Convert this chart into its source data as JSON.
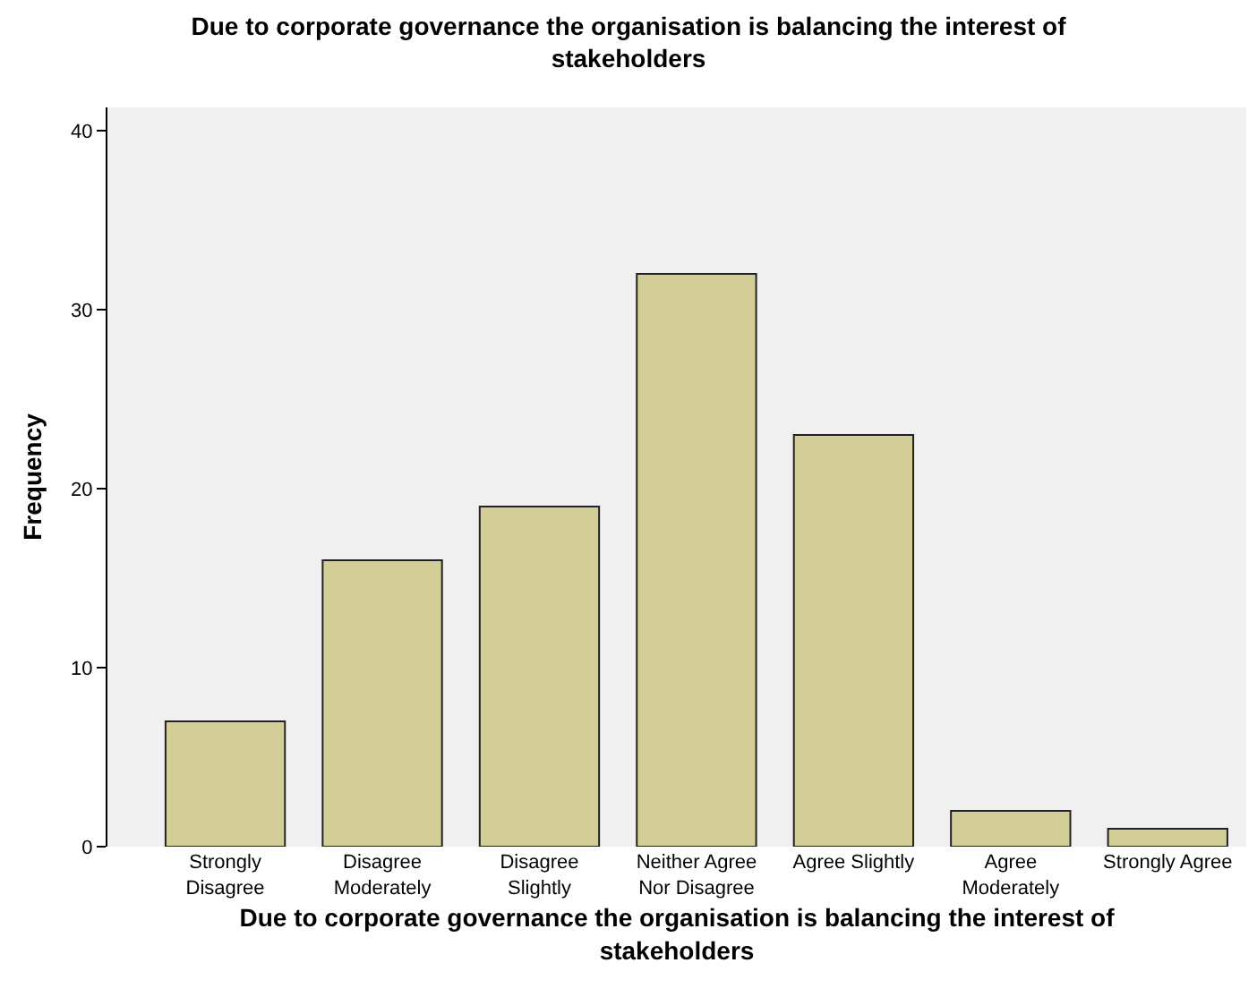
{
  "chart_data": {
    "type": "bar",
    "title": "Due to corporate governance the organisation is balancing the interest of stakeholders",
    "xlabel": "Due to corporate governance the organisation is balancing the interest of stakeholders",
    "ylabel": "Frequency",
    "categories": [
      "Strongly Disagree",
      "Disagree Moderately",
      "Disagree Slightly",
      "Neither Agree Nor Disagree",
      "Agree Slightly",
      "Agree Moderately",
      "Strongly Agree"
    ],
    "values": [
      7,
      16,
      19,
      32,
      23,
      2,
      1
    ],
    "color": "#d3ce97",
    "ylim": [
      0,
      41.3
    ],
    "yticks": [
      0,
      10,
      20,
      30,
      40
    ],
    "grid": false
  }
}
